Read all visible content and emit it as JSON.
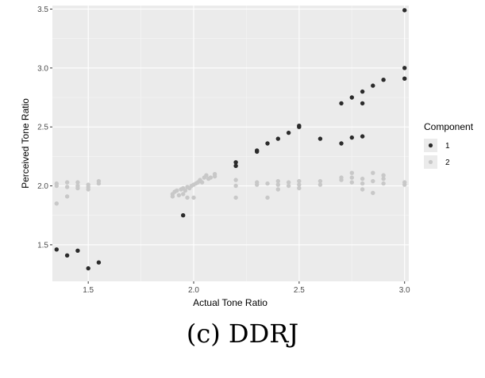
{
  "caption": "(c) DDRJ",
  "chart_data": {
    "type": "scatter",
    "title": "",
    "xlabel": "Actual Tone Ratio",
    "ylabel": "Perceived Tone Ratio",
    "xlim": [
      1.33,
      3.02
    ],
    "ylim": [
      1.19,
      3.53
    ],
    "x_ticks": [
      1.5,
      2.0,
      2.5,
      3.0
    ],
    "x_tick_labels": [
      "1.5",
      "2.0",
      "2.5",
      "3.0"
    ],
    "y_ticks": [
      1.5,
      2.0,
      2.5,
      3.0,
      3.5
    ],
    "y_tick_labels": [
      "1.5",
      "2.0",
      "2.5",
      "3.0",
      "3.5"
    ],
    "grid": true,
    "legend": {
      "title": "Component",
      "position": "right"
    },
    "colors": {
      "panel": "#ebebeb",
      "grid_major": "#ffffff",
      "grid_minor": "#f5f5f5"
    },
    "series": [
      {
        "name": "1",
        "color": "#2b2b2b",
        "points": [
          [
            1.35,
            1.46
          ],
          [
            1.4,
            1.41
          ],
          [
            1.45,
            1.45
          ],
          [
            1.5,
            1.3
          ],
          [
            1.55,
            1.35
          ],
          [
            1.95,
            1.75
          ],
          [
            2.2,
            2.2
          ],
          [
            2.2,
            2.17
          ],
          [
            2.3,
            2.3
          ],
          [
            2.3,
            2.29
          ],
          [
            2.35,
            2.36
          ],
          [
            2.4,
            2.4
          ],
          [
            2.45,
            2.45
          ],
          [
            2.5,
            2.51
          ],
          [
            2.5,
            2.5
          ],
          [
            2.6,
            2.4
          ],
          [
            2.7,
            2.7
          ],
          [
            2.7,
            2.36
          ],
          [
            2.75,
            2.75
          ],
          [
            2.75,
            2.41
          ],
          [
            2.8,
            2.8
          ],
          [
            2.8,
            2.7
          ],
          [
            2.8,
            2.42
          ],
          [
            2.85,
            2.85
          ],
          [
            2.9,
            2.9
          ],
          [
            3.0,
            3.49
          ],
          [
            3.0,
            3.0
          ],
          [
            3.0,
            2.91
          ]
        ]
      },
      {
        "name": "2",
        "color": "#c8c8c8",
        "points": [
          [
            1.35,
            2.02
          ],
          [
            1.35,
            2.0
          ],
          [
            1.35,
            1.85
          ],
          [
            1.4,
            2.03
          ],
          [
            1.4,
            1.99
          ],
          [
            1.4,
            1.91
          ],
          [
            1.45,
            2.03
          ],
          [
            1.45,
            2.0
          ],
          [
            1.45,
            1.98
          ],
          [
            1.5,
            2.01
          ],
          [
            1.5,
            1.99
          ],
          [
            1.5,
            1.97
          ],
          [
            1.55,
            2.04
          ],
          [
            1.55,
            2.02
          ],
          [
            1.9,
            1.91
          ],
          [
            1.9,
            1.93
          ],
          [
            1.91,
            1.95
          ],
          [
            1.92,
            1.96
          ],
          [
            1.93,
            1.92
          ],
          [
            1.94,
            1.97
          ],
          [
            1.95,
            1.98
          ],
          [
            1.95,
            1.93
          ],
          [
            1.96,
            1.96
          ],
          [
            1.97,
            1.99
          ],
          [
            1.97,
            1.9
          ],
          [
            1.98,
            1.98
          ],
          [
            1.99,
            2.0
          ],
          [
            2.0,
            2.01
          ],
          [
            2.0,
            1.9
          ],
          [
            2.01,
            2.02
          ],
          [
            2.02,
            2.03
          ],
          [
            2.03,
            2.05
          ],
          [
            2.04,
            2.03
          ],
          [
            2.05,
            2.07
          ],
          [
            2.06,
            2.09
          ],
          [
            2.07,
            2.06
          ],
          [
            2.08,
            2.07
          ],
          [
            2.1,
            2.1
          ],
          [
            2.1,
            2.08
          ],
          [
            2.2,
            2.05
          ],
          [
            2.2,
            2.0
          ],
          [
            2.2,
            1.9
          ],
          [
            2.3,
            2.03
          ],
          [
            2.3,
            2.01
          ],
          [
            2.35,
            2.02
          ],
          [
            2.35,
            1.9
          ],
          [
            2.4,
            2.04
          ],
          [
            2.4,
            2.01
          ],
          [
            2.4,
            1.97
          ],
          [
            2.45,
            2.03
          ],
          [
            2.45,
            2.0
          ],
          [
            2.5,
            2.04
          ],
          [
            2.5,
            2.01
          ],
          [
            2.5,
            1.98
          ],
          [
            2.6,
            2.04
          ],
          [
            2.6,
            2.01
          ],
          [
            2.7,
            2.07
          ],
          [
            2.7,
            2.05
          ],
          [
            2.75,
            2.11
          ],
          [
            2.75,
            2.07
          ],
          [
            2.75,
            2.03
          ],
          [
            2.8,
            2.06
          ],
          [
            2.8,
            2.02
          ],
          [
            2.8,
            1.97
          ],
          [
            2.85,
            2.11
          ],
          [
            2.85,
            2.04
          ],
          [
            2.85,
            1.94
          ],
          [
            2.9,
            2.09
          ],
          [
            2.9,
            2.06
          ],
          [
            2.9,
            2.02
          ],
          [
            3.0,
            2.03
          ],
          [
            3.0,
            2.01
          ]
        ]
      }
    ]
  }
}
